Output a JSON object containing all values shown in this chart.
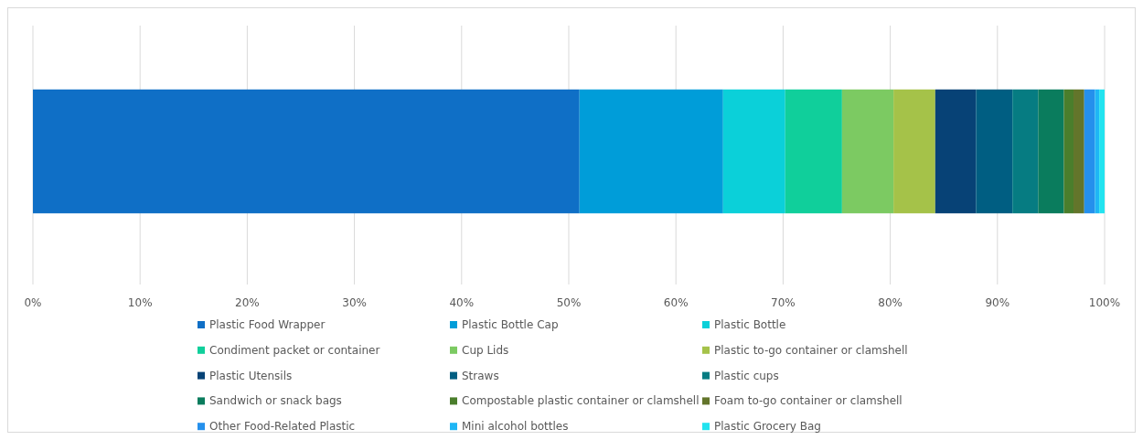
{
  "chart_data": {
    "type": "bar",
    "orientation": "horizontal",
    "stacked": true,
    "categories": [
      null
    ],
    "xlim": [
      0,
      100
    ],
    "xticks": [
      {
        "value": 0,
        "label": "0%"
      },
      {
        "value": 10,
        "label": "10%"
      },
      {
        "value": 20,
        "label": "20%"
      },
      {
        "value": 30,
        "label": "30%"
      },
      {
        "value": 40,
        "label": "40%"
      },
      {
        "value": 50,
        "label": "50%"
      },
      {
        "value": 60,
        "label": "60%"
      },
      {
        "value": 70,
        "label": "70%"
      },
      {
        "value": 80,
        "label": "80%"
      },
      {
        "value": 90,
        "label": "90%"
      },
      {
        "value": 100,
        "label": "100%"
      }
    ],
    "grid": "x",
    "legend": "bottom",
    "series": [
      {
        "name": "Plastic Food Wrapper",
        "color": "#0f6fc6",
        "values": [
          51.0
        ]
      },
      {
        "name": "Plastic Bottle Cap",
        "color": "#009dd9",
        "values": [
          13.4
        ]
      },
      {
        "name": "Plastic Bottle",
        "color": "#0bd0d9",
        "values": [
          5.8
        ]
      },
      {
        "name": "Condiment packet or container",
        "color": "#10cf9b",
        "values": [
          5.3
        ]
      },
      {
        "name": "Cup Lids",
        "color": "#7cca62",
        "values": [
          4.8
        ]
      },
      {
        "name": "Plastic to-go container or clamshell",
        "color": "#a5c249",
        "values": [
          3.9
        ]
      },
      {
        "name": "Plastic Utensils",
        "color": "#074276",
        "values": [
          3.8
        ]
      },
      {
        "name": "Straws",
        "color": "#005e82",
        "values": [
          3.4
        ]
      },
      {
        "name": "Plastic cups",
        "color": "#067c82",
        "values": [
          2.4
        ]
      },
      {
        "name": "Sandwich or snack bags",
        "color": "#0a7c5d",
        "values": [
          2.4
        ]
      },
      {
        "name": "Compostable plastic container or clamshell",
        "color": "#4a7e2c",
        "values": [
          0.9
        ]
      },
      {
        "name": "Foam to-go container or clamshell",
        "color": "#63752b",
        "values": [
          1.0
        ]
      },
      {
        "name": "Other Food-Related Plastic",
        "color": "#2590ec",
        "values": [
          1.0
        ]
      },
      {
        "name": "Mini alcohol bottles",
        "color": "#1fb6f5",
        "values": [
          0.4
        ]
      },
      {
        "name": "Plastic Grocery Bag",
        "color": "#22e3ef",
        "values": [
          0.5
        ]
      }
    ]
  }
}
